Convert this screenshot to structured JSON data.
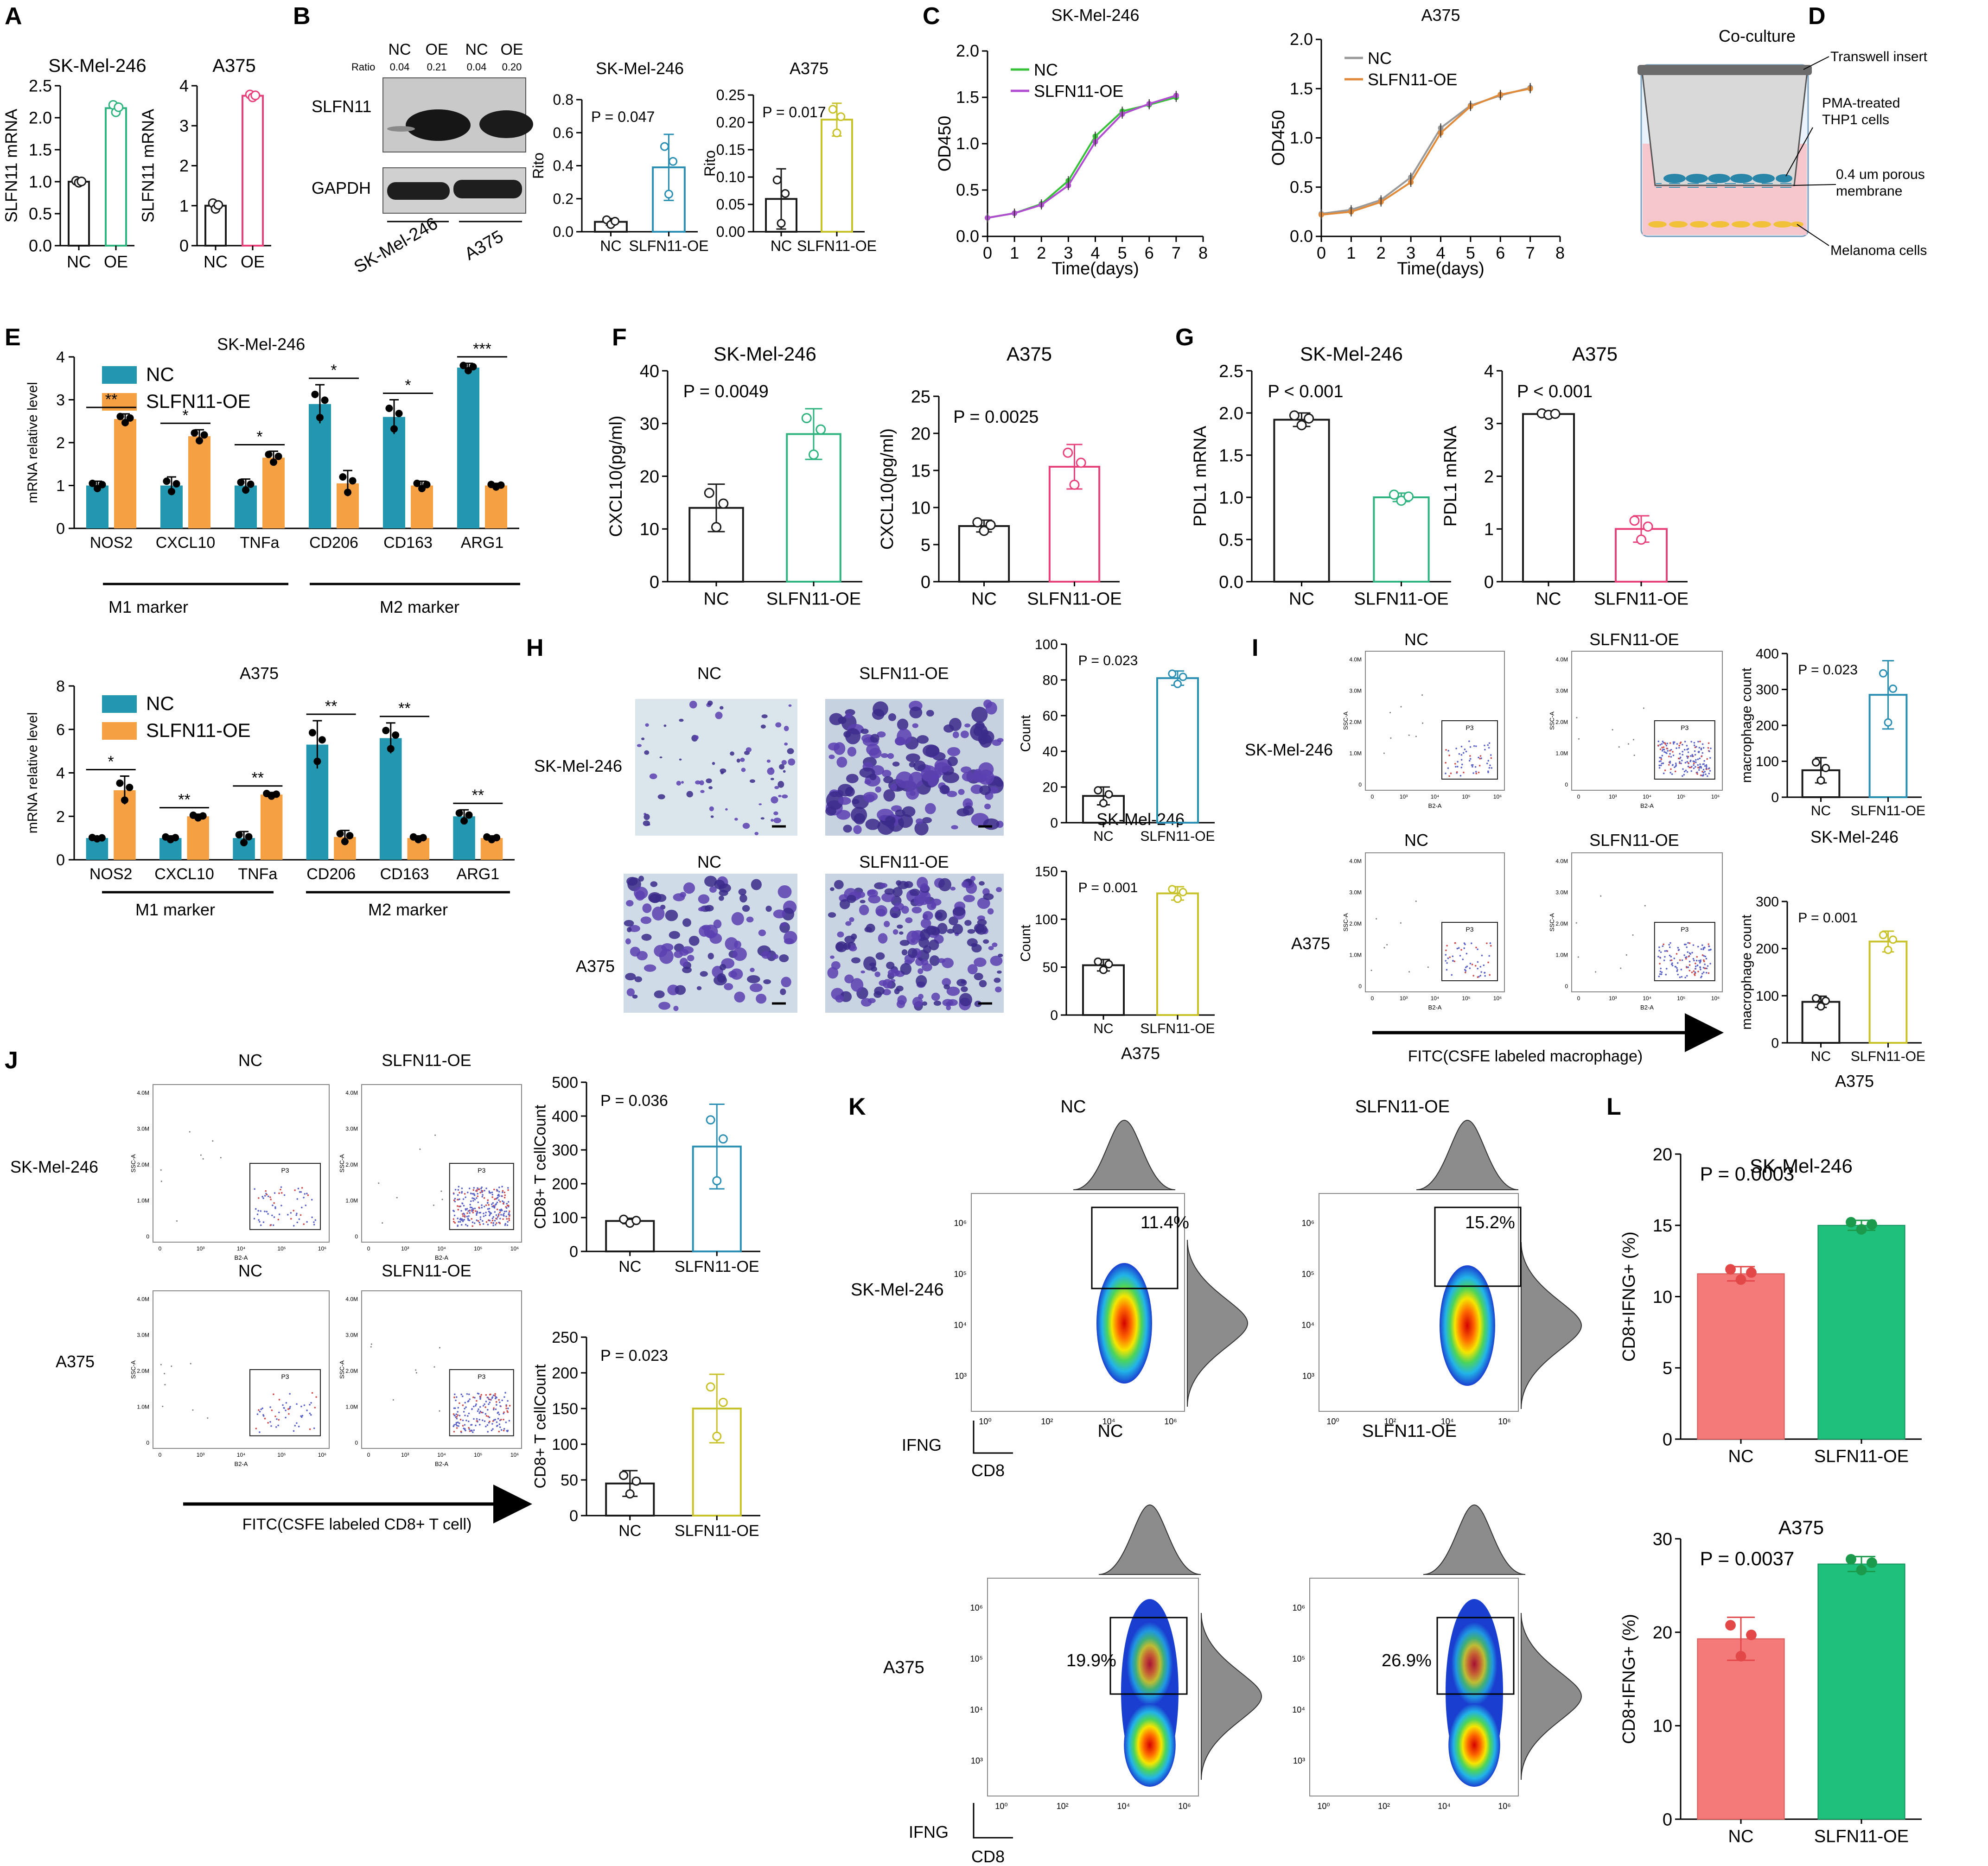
{
  "colors": {
    "nc": "#1a1a1a",
    "oe_green": "#2fb37f",
    "oe_pink": "#e8407a",
    "oe_teal": "#2b8fb3",
    "oe_olive": "#c8c22a",
    "bar_teal": "#2396b0",
    "bar_orange": "#f4a043",
    "line_green": "#38c23a",
    "line_purple": "#b04cd0",
    "line_gray": "#999999",
    "line_orange": "#e08a3a",
    "l_nc": "#f47a7a",
    "l_oe": "#1fbf7c",
    "l_nc_dot": "#e34848",
    "l_oe_dot": "#1a9a4a"
  },
  "panels": {
    "A": {
      "letter": "A",
      "sub": [
        "SK-Mel-246",
        "A375"
      ]
    },
    "B": {
      "letter": "B",
      "header": [
        "NC",
        "OE",
        "NC",
        "OE"
      ],
      "ratio_label": "Ratio",
      "ratios": [
        "0.04",
        "0.21",
        "0.04",
        "0.20"
      ],
      "protein_1": "SLFN11",
      "protein_2": "GAPDH",
      "cell_1": "SK-Mel-246",
      "cell_2": "A375"
    },
    "C": {
      "letter": "C"
    },
    "D": {
      "letter": "D",
      "title": "Co-culture",
      "labels": [
        "Transwell insert",
        "PMA-treated",
        "THP1 cells",
        "0.4 um porous",
        "membrane",
        "Melanoma cells"
      ]
    },
    "E": {
      "letter": "E",
      "m1": "M1 marker",
      "m2": "M2 marker"
    },
    "F": {
      "letter": "F"
    },
    "G": {
      "letter": "G"
    },
    "H": {
      "letter": "H",
      "img_labels": [
        "NC",
        "SLFN11-OE",
        "NC",
        "SLFN11-OE"
      ],
      "rows": [
        "SK-Mel-246",
        "A375"
      ]
    },
    "I": {
      "letter": "I",
      "cols": [
        "NC",
        "SLFN11-OE",
        "NC",
        "SLFN11-OE"
      ],
      "rows": [
        "SK-Mel-246",
        "A375"
      ],
      "arrow_label": "FITC(CSFE labeled macrophage)"
    },
    "J": {
      "letter": "J",
      "cols": [
        "NC",
        "SLFN11-OE",
        "NC",
        "SLFN11-OE"
      ],
      "rows": [
        "SK-Mel-246",
        "A375"
      ],
      "arrow_label": "FITC(CSFE labeled CD8+ T cell)"
    },
    "K": {
      "letter": "K",
      "cols": [
        "NC",
        "SLFN11-OE",
        "NC",
        "SLFN11-OE"
      ],
      "rows": [
        "SK-Mel-246",
        "A375"
      ],
      "pcts": [
        "11.4%",
        "15.2%",
        "19.9%",
        "26.9%"
      ],
      "y_axis": "IFNG",
      "x_axis": "CD8"
    },
    "L": {
      "letter": "L"
    },
    "facs": {
      "gate": "P3",
      "xaxis": "B2-A",
      "yaxis": "SSC-A",
      "yticks": [
        "4.0M",
        "3.0M",
        "2.0M",
        "1.0M",
        "0"
      ],
      "xticks": [
        "0",
        "10³",
        "10⁴",
        "10⁵",
        "10⁶"
      ]
    },
    "kfacs": {
      "yticks": [
        "10⁶",
        "10⁵",
        "10⁴",
        "10³"
      ],
      "xticks": [
        "10⁰",
        "10²",
        "10⁴",
        "10⁶"
      ]
    }
  },
  "chart_data": [
    {
      "id": "A1",
      "type": "bar",
      "title": "SK-Mel-246",
      "ylabel": "SLFN11 mRNA",
      "categories": [
        "NC",
        "OE"
      ],
      "values": [
        1.0,
        2.15
      ],
      "errors": [
        0.02,
        0.08
      ],
      "ylim": [
        0,
        2.5
      ],
      "yticks": [
        "0.0",
        "0.5",
        "1.0",
        "1.5",
        "2.0",
        "2.5"
      ]
    },
    {
      "id": "A2",
      "type": "bar",
      "title": "A375",
      "ylabel": "SLFN11 mRNA",
      "categories": [
        "NC",
        "OE"
      ],
      "values": [
        1.0,
        3.75
      ],
      "errors": [
        0.1,
        0.05
      ],
      "ylim": [
        0,
        4
      ],
      "yticks": [
        "0",
        "1",
        "2",
        "3",
        "4"
      ]
    },
    {
      "id": "B1",
      "type": "bar",
      "title": "SK-Mel-246",
      "ylabel": "Rito",
      "categories": [
        "NC",
        "SLFN11-OE"
      ],
      "values": [
        0.06,
        0.39
      ],
      "errors": [
        0.02,
        0.2
      ],
      "ylim": [
        0,
        0.8
      ],
      "yticks": [
        "0.0",
        "0.2",
        "0.4",
        "0.6",
        "0.8"
      ],
      "annotation": "P = 0.047"
    },
    {
      "id": "B2",
      "type": "bar",
      "title": "A375",
      "ylabel": "Rito",
      "categories": [
        "NC",
        "SLFN11-OE"
      ],
      "values": [
        0.06,
        0.205
      ],
      "errors": [
        0.055,
        0.03
      ],
      "ylim": [
        0,
        0.25
      ],
      "yticks": [
        "0.00",
        "0.05",
        "0.10",
        "0.15",
        "0.20",
        "0.25"
      ],
      "annotation": "P = 0.017"
    },
    {
      "id": "C1",
      "type": "line",
      "title": "SK-Mel-246",
      "xlabel": "Time(days)",
      "ylabel": "OD450",
      "x": [
        0,
        1,
        2,
        3,
        4,
        5,
        6,
        7
      ],
      "xlim": [
        0,
        8
      ],
      "ylim": [
        0,
        2.0
      ],
      "xticks": [
        "0",
        "1",
        "2",
        "3",
        "4",
        "5",
        "6",
        "7",
        "8"
      ],
      "yticks": [
        "0.0",
        "0.5",
        "1.0",
        "1.5",
        "2.0"
      ],
      "legend": "top-left",
      "series": [
        {
          "name": "NC",
          "values": [
            0.2,
            0.25,
            0.35,
            0.6,
            1.08,
            1.35,
            1.42,
            1.5
          ]
        },
        {
          "name": "SLFN11-OE",
          "values": [
            0.2,
            0.25,
            0.34,
            0.55,
            1.02,
            1.32,
            1.43,
            1.52
          ]
        }
      ]
    },
    {
      "id": "C2",
      "type": "line",
      "title": "A375",
      "xlabel": "Time(days)",
      "ylabel": "OD450",
      "x": [
        0,
        1,
        2,
        3,
        4,
        5,
        6,
        7
      ],
      "xlim": [
        0,
        8
      ],
      "ylim": [
        0,
        2.0
      ],
      "xticks": [
        "0",
        "1",
        "2",
        "3",
        "4",
        "5",
        "6",
        "7",
        "8"
      ],
      "yticks": [
        "0.0",
        "0.5",
        "1.0",
        "1.5",
        "2.0"
      ],
      "legend": "top-left",
      "series": [
        {
          "name": "NC",
          "values": [
            0.23,
            0.27,
            0.37,
            0.6,
            1.1,
            1.33,
            1.43,
            1.51
          ]
        },
        {
          "name": "SLFN11-OE",
          "values": [
            0.22,
            0.25,
            0.35,
            0.55,
            1.05,
            1.32,
            1.44,
            1.5
          ]
        }
      ]
    },
    {
      "id": "E1",
      "type": "bar",
      "title": "SK-Mel-246",
      "ylabel": "mRNA relative level",
      "categories": [
        "NOS2",
        "CXCL10",
        "TNFa",
        "CD206",
        "CD163",
        "ARG1"
      ],
      "ylim": [
        0,
        4
      ],
      "yticks": [
        "0",
        "1",
        "2",
        "3",
        "4"
      ],
      "legend": "top-left",
      "series": [
        {
          "name": "NC",
          "values": [
            1.0,
            1.0,
            1.0,
            2.9,
            2.6,
            3.75
          ],
          "errors": [
            0.1,
            0.2,
            0.15,
            0.45,
            0.4,
            0.1
          ]
        },
        {
          "name": "SLFN11-OE",
          "values": [
            2.55,
            2.15,
            1.65,
            1.05,
            1.0,
            1.0
          ],
          "errors": [
            0.12,
            0.15,
            0.15,
            0.3,
            0.1,
            0.05
          ]
        }
      ],
      "significance": [
        "**",
        "*",
        "*",
        "*",
        "*",
        "***"
      ]
    },
    {
      "id": "E2",
      "type": "bar",
      "title": "A375",
      "ylabel": "mRNA relative level",
      "categories": [
        "NOS2",
        "CXCL10",
        "TNFa",
        "CD206",
        "CD163",
        "ARG1"
      ],
      "ylim": [
        0,
        8
      ],
      "yticks": [
        "0",
        "2",
        "4",
        "6",
        "8"
      ],
      "legend": "top-left",
      "series": [
        {
          "name": "NC",
          "values": [
            1.0,
            1.0,
            1.0,
            5.3,
            5.6,
            2.0
          ],
          "errors": [
            0.05,
            0.1,
            0.3,
            1.1,
            0.7,
            0.3
          ]
        },
        {
          "name": "SLFN11-OE",
          "values": [
            3.2,
            2.0,
            3.0,
            1.05,
            1.0,
            1.0
          ],
          "errors": [
            0.65,
            0.1,
            0.1,
            0.3,
            0.1,
            0.1
          ]
        }
      ],
      "significance": [
        "*",
        "**",
        "**",
        "**",
        "**",
        "**"
      ]
    },
    {
      "id": "F1",
      "type": "bar",
      "title": "SK-Mel-246",
      "ylabel": "CXCL10(pg/ml)",
      "categories": [
        "NC",
        "SLFN11-OE"
      ],
      "values": [
        14,
        28
      ],
      "errors": [
        4.5,
        4.8
      ],
      "ylim": [
        0,
        40
      ],
      "yticks": [
        "0",
        "10",
        "20",
        "30",
        "40"
      ],
      "annotation": "P = 0.0049"
    },
    {
      "id": "F2",
      "type": "bar",
      "title": "A375",
      "ylabel": "CXCL10(pg/ml)",
      "categories": [
        "NC",
        "SLFN11-OE"
      ],
      "values": [
        7.5,
        15.5
      ],
      "errors": [
        0.8,
        3
      ],
      "ylim": [
        0,
        25
      ],
      "yticks": [
        "0",
        "5",
        "10",
        "15",
        "20",
        "25"
      ],
      "annotation": "P = 0.0025"
    },
    {
      "id": "G1",
      "type": "bar",
      "title": "SK-Mel-246",
      "ylabel": "PDL1 mRNA",
      "categories": [
        "NC",
        "SLFN11-OE"
      ],
      "values": [
        1.92,
        1.0
      ],
      "errors": [
        0.08,
        0.05
      ],
      "ylim": [
        0,
        2.5
      ],
      "yticks": [
        "0.0",
        "0.5",
        "1.0",
        "1.5",
        "2.0",
        "2.5"
      ],
      "annotation": "P < 0.001"
    },
    {
      "id": "G2",
      "type": "bar",
      "title": "A375",
      "ylabel": "PDL1 mRNA",
      "categories": [
        "NC",
        "SLFN11-OE"
      ],
      "values": [
        3.18,
        1.0
      ],
      "errors": [
        0.02,
        0.25
      ],
      "ylim": [
        0,
        4
      ],
      "yticks": [
        "0",
        "1",
        "2",
        "3",
        "4"
      ],
      "annotation": "P < 0.001"
    },
    {
      "id": "H1",
      "type": "bar",
      "title": "SK-Mel-246",
      "ylabel": "Count",
      "categories": [
        "NC",
        "SLFN11-OE"
      ],
      "values": [
        15,
        81
      ],
      "errors": [
        5,
        4
      ],
      "ylim": [
        0,
        100
      ],
      "yticks": [
        "0",
        "20",
        "40",
        "60",
        "80",
        "100"
      ],
      "annotation": "P = 0.023"
    },
    {
      "id": "H2",
      "type": "bar",
      "title": "A375",
      "ylabel": "Count",
      "categories": [
        "NC",
        "SLFN11-OE"
      ],
      "values": [
        52,
        127
      ],
      "errors": [
        6,
        7
      ],
      "ylim": [
        0,
        150
      ],
      "yticks": [
        "0",
        "50",
        "100",
        "150"
      ],
      "annotation": "P = 0.001"
    },
    {
      "id": "I1",
      "type": "bar",
      "title": "SK-Mel-246",
      "ylabel": "macrophage count",
      "categories": [
        "NC",
        "SLFN11-OE"
      ],
      "values": [
        75,
        285
      ],
      "errors": [
        35,
        95
      ],
      "ylim": [
        0,
        400
      ],
      "yticks": [
        "0",
        "100",
        "200",
        "300",
        "400"
      ],
      "annotation": "P = 0.023"
    },
    {
      "id": "I2",
      "type": "bar",
      "title": "A375",
      "ylabel": "macrophage count",
      "categories": [
        "NC",
        "SLFN11-OE"
      ],
      "values": [
        87,
        215
      ],
      "errors": [
        12,
        22
      ],
      "ylim": [
        0,
        300
      ],
      "yticks": [
        "0",
        "100",
        "200",
        "300"
      ],
      "annotation": "P = 0.001"
    },
    {
      "id": "J1",
      "type": "bar",
      "ylabel": "CD8+ T cellCount",
      "categories": [
        "NC",
        "SLFN11-OE"
      ],
      "values": [
        90,
        310
      ],
      "errors": [
        8,
        125
      ],
      "ylim": [
        0,
        500
      ],
      "yticks": [
        "0",
        "100",
        "200",
        "300",
        "400",
        "500"
      ],
      "annotation": "P = 0.036"
    },
    {
      "id": "J2",
      "type": "bar",
      "ylabel": "CD8+ T cellCount",
      "categories": [
        "NC",
        "SLFN11-OE"
      ],
      "values": [
        45,
        150
      ],
      "errors": [
        18,
        48
      ],
      "ylim": [
        0,
        250
      ],
      "yticks": [
        "0",
        "50",
        "100",
        "150",
        "200",
        "250"
      ],
      "annotation": "P = 0.023"
    },
    {
      "id": "L1",
      "type": "bar",
      "title": "SK-Mel-246",
      "ylabel": "CD8+IFNG+ (%)",
      "categories": [
        "NC",
        "SLFN11-OE"
      ],
      "values": [
        11.6,
        15.0
      ],
      "errors": [
        0.5,
        0.35
      ],
      "ylim": [
        0,
        20
      ],
      "yticks": [
        "0",
        "5",
        "10",
        "15",
        "20"
      ],
      "annotation": "P = 0.0003"
    },
    {
      "id": "L2",
      "type": "bar",
      "title": "A375",
      "ylabel": "CD8+IFNG+ (%)",
      "categories": [
        "NC",
        "SLFN11-OE"
      ],
      "values": [
        19.3,
        27.3
      ],
      "errors": [
        2.3,
        0.8
      ],
      "ylim": [
        0,
        30
      ],
      "yticks": [
        "0",
        "10",
        "20",
        "30"
      ],
      "annotation": "P = 0.0037"
    }
  ]
}
